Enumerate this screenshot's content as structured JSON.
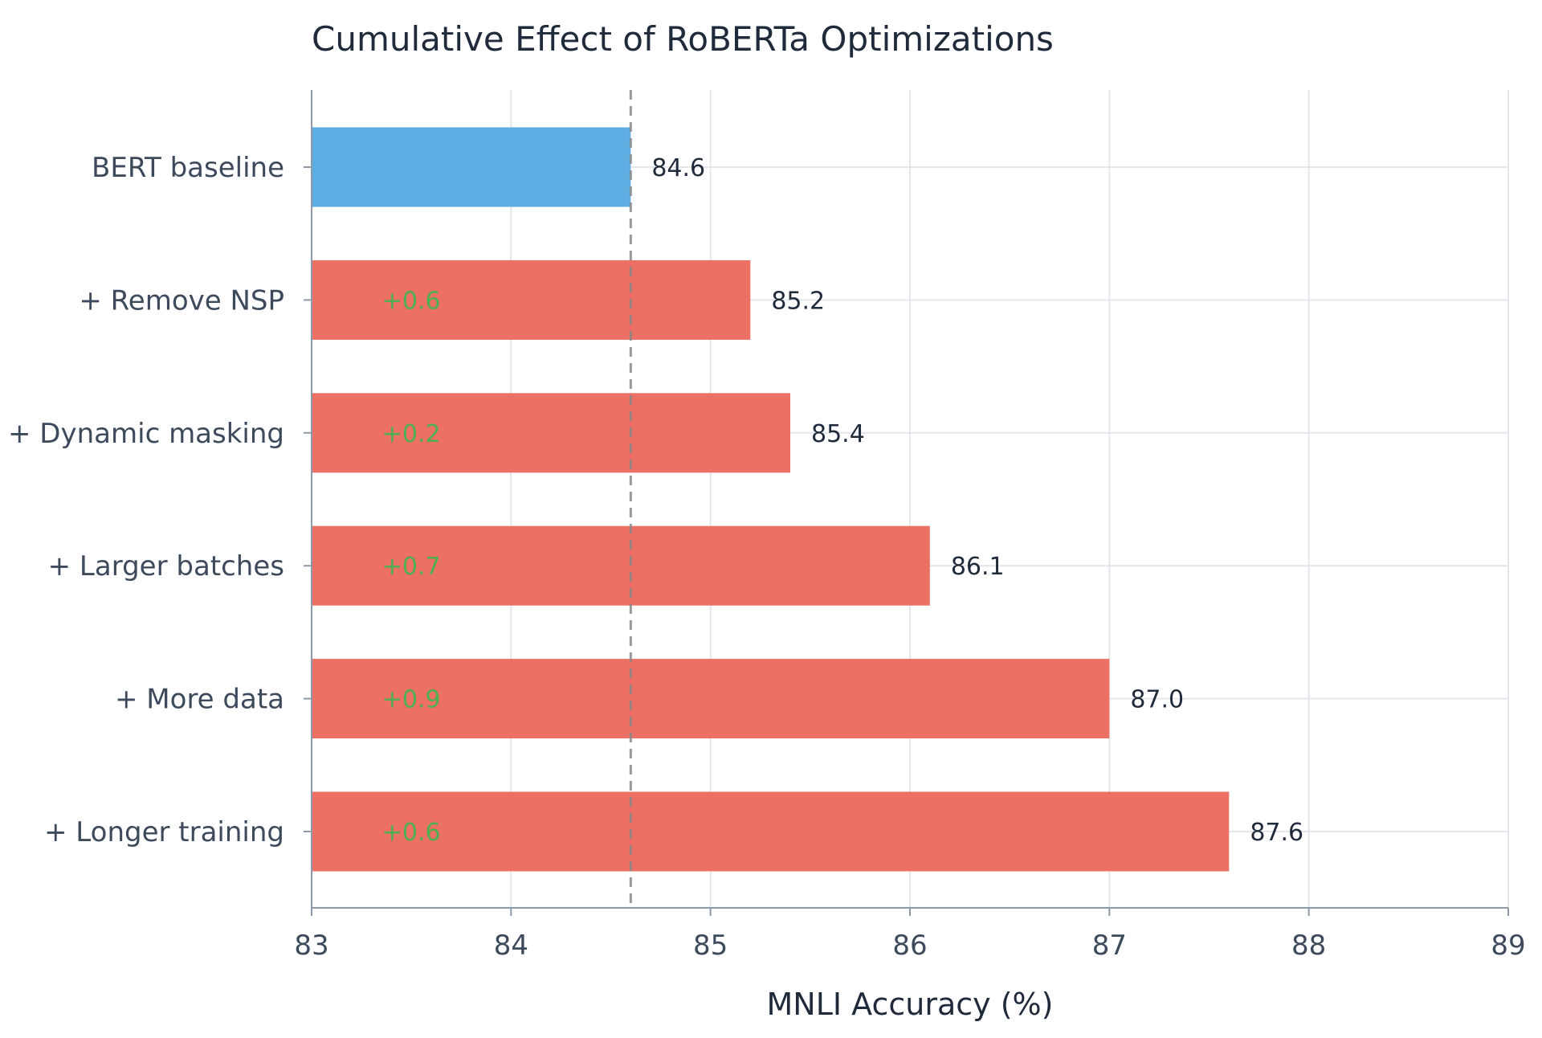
{
  "chart_data": {
    "type": "bar",
    "orientation": "horizontal",
    "title": "Cumulative Effect of RoBERTa Optimizations",
    "xlabel": "MNLI Accuracy (%)",
    "ylabel": "",
    "xlim": [
      83,
      89
    ],
    "xticks": [
      "83",
      "84",
      "85",
      "86",
      "87",
      "88",
      "89"
    ],
    "categories": [
      "BERT baseline",
      "+ Remove NSP",
      "+ Dynamic masking",
      "+ Larger batches",
      "+ More data",
      "+ Longer training"
    ],
    "values": [
      84.6,
      85.2,
      85.4,
      86.1,
      87.0,
      87.6
    ],
    "value_labels": [
      "84.6",
      "85.2",
      "85.4",
      "86.1",
      "87.0",
      "87.6"
    ],
    "deltas": [
      "",
      "+0.6",
      "+0.2",
      "+0.7",
      "+0.9",
      "+0.6"
    ],
    "reference_line": {
      "value": 84.6,
      "style": "dashed",
      "color": "#888888"
    },
    "grid": true,
    "legend": "none",
    "colors": {
      "baseline": "#5dade2",
      "optimization": "#ec7063",
      "delta_text": "#4caf50",
      "grid": "#e3e7ec",
      "axis": "#8a9aab"
    }
  }
}
